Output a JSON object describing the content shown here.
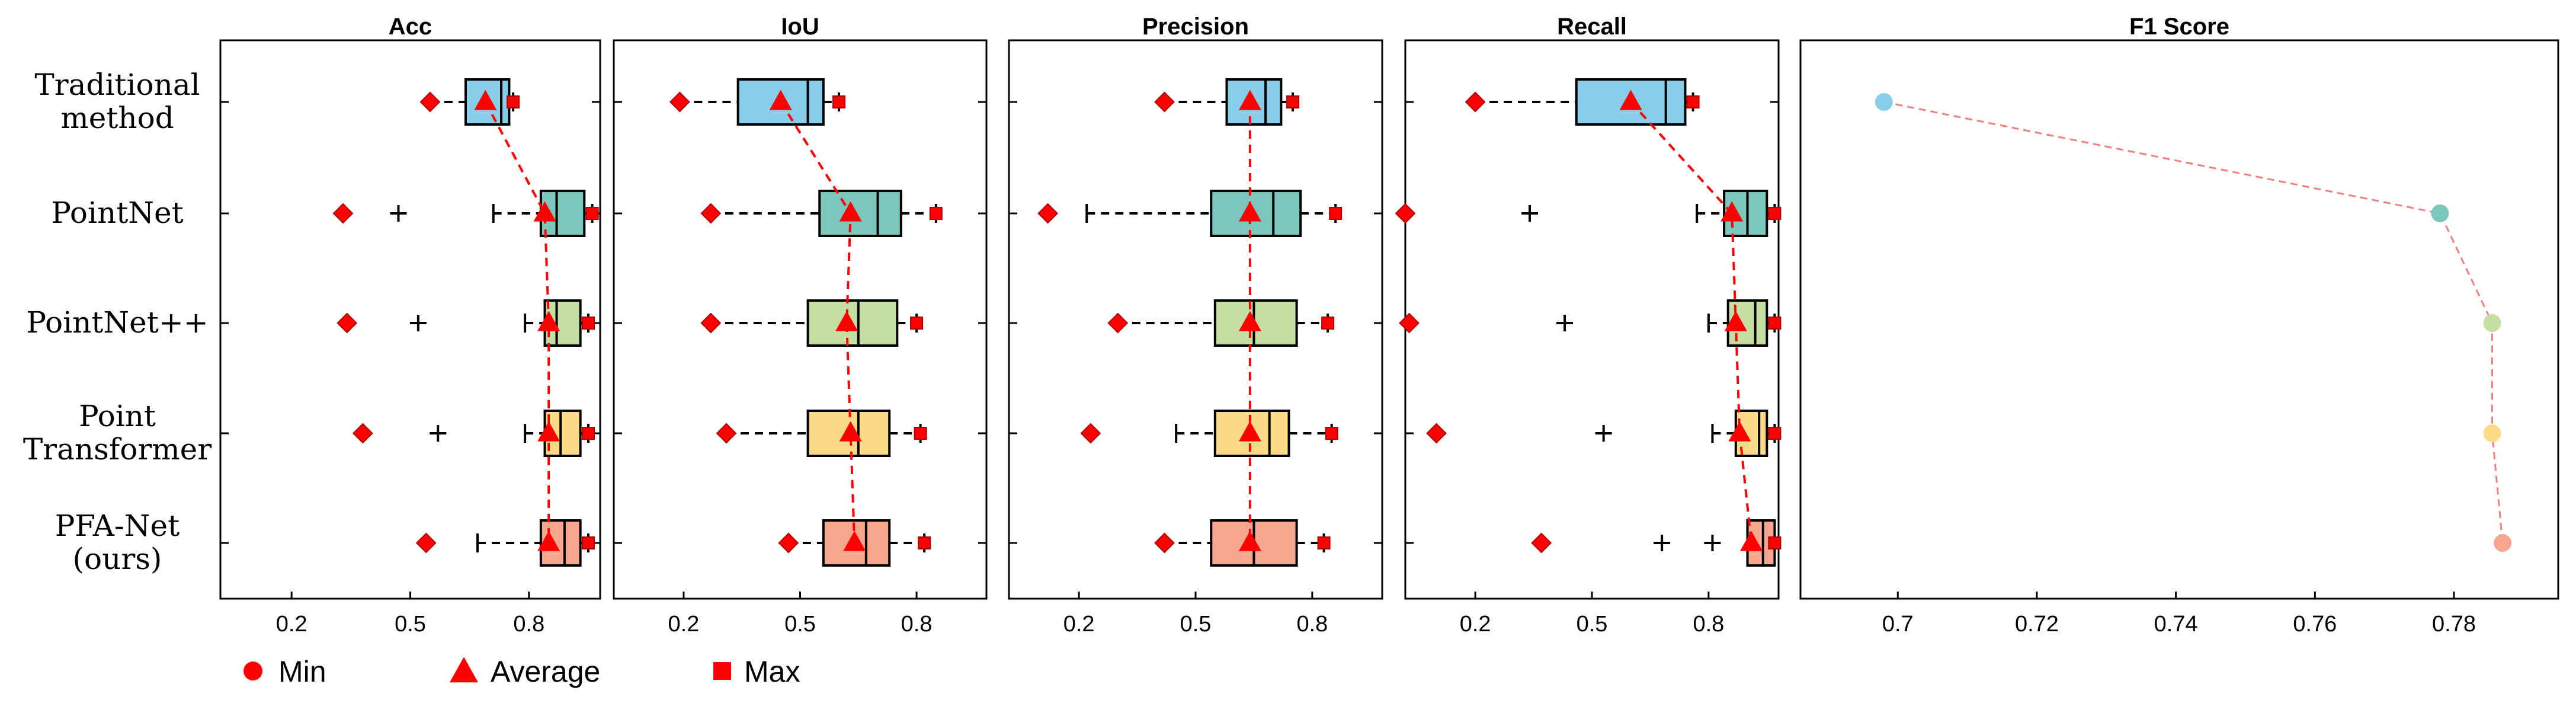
{
  "chart_data": {
    "type": "boxplot",
    "methods": [
      {
        "label_lines": [
          "Traditional",
          "method"
        ],
        "color": "#87CEEB"
      },
      {
        "label_lines": [
          "PointNet"
        ],
        "color": "#7DC6BC"
      },
      {
        "label_lines": [
          "PointNet++"
        ],
        "color": "#C5DEA2"
      },
      {
        "label_lines": [
          "Point",
          "Transformer"
        ],
        "color": "#FBDB85"
      },
      {
        "label_lines": [
          "PFA-Net",
          "(ours)"
        ],
        "color": "#F4A68E"
      }
    ],
    "marker_color": "#FF0000",
    "panels": [
      {
        "title": "Acc",
        "xlim": [
          0.02,
          0.98
        ],
        "ticks": [
          0.2,
          0.5,
          0.8
        ],
        "tick_labels": [
          "0.2",
          "0.5",
          "0.8"
        ],
        "boxes": [
          {
            "min": 0.55,
            "q1": 0.64,
            "median": 0.73,
            "q3": 0.75,
            "max": 0.76,
            "whisker_low": 0.55,
            "whisker_high": 0.76,
            "mean": 0.69,
            "outliers": []
          },
          {
            "min": 0.33,
            "q1": 0.83,
            "median": 0.87,
            "q3": 0.94,
            "max": 0.96,
            "whisker_low": 0.71,
            "whisker_high": 0.96,
            "mean": 0.84,
            "outliers": [
              0.47
            ]
          },
          {
            "min": 0.34,
            "q1": 0.84,
            "median": 0.87,
            "q3": 0.93,
            "max": 0.95,
            "whisker_low": 0.79,
            "whisker_high": 0.95,
            "mean": 0.85,
            "outliers": [
              0.52
            ]
          },
          {
            "min": 0.38,
            "q1": 0.84,
            "median": 0.88,
            "q3": 0.93,
            "max": 0.95,
            "whisker_low": 0.79,
            "whisker_high": 0.95,
            "mean": 0.85,
            "outliers": [
              0.57
            ]
          },
          {
            "min": 0.54,
            "q1": 0.83,
            "median": 0.89,
            "q3": 0.93,
            "max": 0.95,
            "whisker_low": 0.67,
            "whisker_high": 0.95,
            "mean": 0.85,
            "outliers": []
          }
        ]
      },
      {
        "title": "IoU",
        "xlim": [
          0.02,
          0.98
        ],
        "ticks": [
          0.2,
          0.5,
          0.8
        ],
        "tick_labels": [
          "0.2",
          "0.5",
          "0.8"
        ],
        "boxes": [
          {
            "min": 0.19,
            "q1": 0.34,
            "median": 0.52,
            "q3": 0.56,
            "max": 0.6,
            "whisker_low": 0.19,
            "whisker_high": 0.6,
            "mean": 0.45,
            "outliers": []
          },
          {
            "min": 0.27,
            "q1": 0.55,
            "median": 0.7,
            "q3": 0.76,
            "max": 0.85,
            "whisker_low": 0.27,
            "whisker_high": 0.85,
            "mean": 0.63,
            "outliers": []
          },
          {
            "min": 0.27,
            "q1": 0.52,
            "median": 0.65,
            "q3": 0.75,
            "max": 0.8,
            "whisker_low": 0.27,
            "whisker_high": 0.8,
            "mean": 0.62,
            "outliers": []
          },
          {
            "min": 0.31,
            "q1": 0.52,
            "median": 0.65,
            "q3": 0.73,
            "max": 0.81,
            "whisker_low": 0.31,
            "whisker_high": 0.81,
            "mean": 0.63,
            "outliers": []
          },
          {
            "min": 0.47,
            "q1": 0.56,
            "median": 0.67,
            "q3": 0.73,
            "max": 0.82,
            "whisker_low": 0.47,
            "whisker_high": 0.82,
            "mean": 0.64,
            "outliers": []
          }
        ]
      },
      {
        "title": "Precision",
        "xlim": [
          0.02,
          0.98
        ],
        "ticks": [
          0.2,
          0.5,
          0.8
        ],
        "tick_labels": [
          "0.2",
          "0.5",
          "0.8"
        ],
        "boxes": [
          {
            "min": 0.42,
            "q1": 0.58,
            "median": 0.68,
            "q3": 0.72,
            "max": 0.75,
            "whisker_low": 0.42,
            "whisker_high": 0.75,
            "mean": 0.64,
            "outliers": []
          },
          {
            "min": 0.12,
            "q1": 0.54,
            "median": 0.7,
            "q3": 0.77,
            "max": 0.86,
            "whisker_low": 0.22,
            "whisker_high": 0.86,
            "mean": 0.64,
            "outliers": []
          },
          {
            "min": 0.3,
            "q1": 0.55,
            "median": 0.65,
            "q3": 0.76,
            "max": 0.84,
            "whisker_low": 0.3,
            "whisker_high": 0.84,
            "mean": 0.64,
            "outliers": []
          },
          {
            "min": 0.23,
            "q1": 0.55,
            "median": 0.69,
            "q3": 0.74,
            "max": 0.85,
            "whisker_low": 0.45,
            "whisker_high": 0.85,
            "mean": 0.64,
            "outliers": []
          },
          {
            "min": 0.42,
            "q1": 0.54,
            "median": 0.65,
            "q3": 0.76,
            "max": 0.83,
            "whisker_low": 0.42,
            "whisker_high": 0.83,
            "mean": 0.64,
            "outliers": []
          }
        ]
      },
      {
        "title": "Recall",
        "xlim": [
          0.02,
          0.98
        ],
        "ticks": [
          0.2,
          0.5,
          0.8
        ],
        "tick_labels": [
          "0.2",
          "0.5",
          "0.8"
        ],
        "boxes": [
          {
            "min": 0.2,
            "q1": 0.46,
            "median": 0.69,
            "q3": 0.74,
            "max": 0.76,
            "whisker_low": 0.2,
            "whisker_high": 0.76,
            "mean": 0.6,
            "outliers": []
          },
          {
            "min": 0.02,
            "q1": 0.84,
            "median": 0.9,
            "q3": 0.95,
            "max": 0.97,
            "whisker_low": 0.77,
            "whisker_high": 0.97,
            "mean": 0.86,
            "outliers": [
              0.34
            ]
          },
          {
            "min": 0.03,
            "q1": 0.85,
            "median": 0.92,
            "q3": 0.95,
            "max": 0.97,
            "whisker_low": 0.8,
            "whisker_high": 0.97,
            "mean": 0.87,
            "outliers": [
              0.43
            ]
          },
          {
            "min": 0.1,
            "q1": 0.87,
            "median": 0.93,
            "q3": 0.95,
            "max": 0.97,
            "whisker_low": 0.81,
            "whisker_high": 0.97,
            "mean": 0.88,
            "outliers": [
              0.53
            ]
          },
          {
            "min": 0.37,
            "q1": 0.9,
            "median": 0.94,
            "q3": 0.97,
            "max": 0.97,
            "whisker_low": 0.9,
            "whisker_high": 0.97,
            "mean": 0.91,
            "outliers": [
              0.68,
              0.81
            ]
          }
        ]
      }
    ],
    "f1_panel": {
      "title": "F1 Score",
      "type": "line",
      "xlim": [
        0.686,
        0.795
      ],
      "ticks": [
        0.7,
        0.72,
        0.74,
        0.76,
        0.78
      ],
      "tick_labels": [
        "0.7",
        "0.72",
        "0.74",
        "0.76",
        "0.78"
      ],
      "values": [
        0.698,
        0.778,
        0.7855,
        0.7855,
        0.787
      ],
      "line_color": "#F08080"
    },
    "legend": [
      {
        "label": "Min",
        "marker": "circle"
      },
      {
        "label": "Average",
        "marker": "triangle"
      },
      {
        "label": "Max",
        "marker": "square"
      }
    ]
  }
}
